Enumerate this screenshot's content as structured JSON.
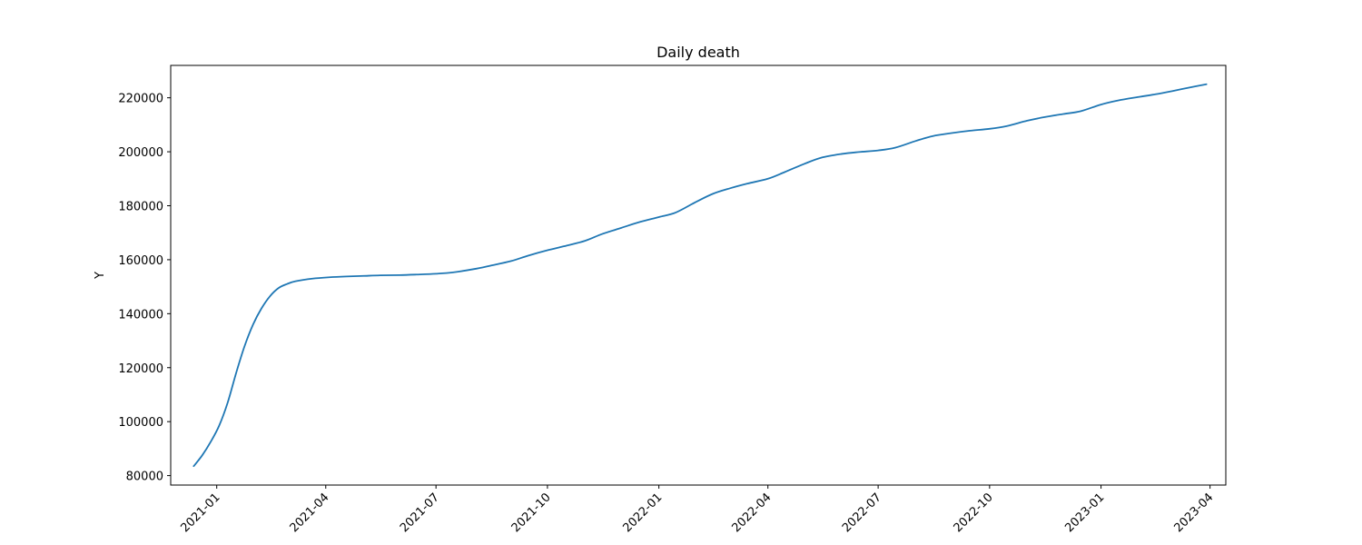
{
  "chart_data": {
    "type": "line",
    "title": "Daily death",
    "xlabel": "",
    "ylabel": "Y",
    "x_axis_type": "date",
    "xlim": [
      "2020-11-24",
      "2023-04-14"
    ],
    "ylim": [
      76500,
      232000
    ],
    "grid": false,
    "legend": "none",
    "line_color": "#1f77b4",
    "x_ticks": [
      "2021-01",
      "2021-04",
      "2021-07",
      "2021-10",
      "2022-01",
      "2022-04",
      "2022-07",
      "2022-10",
      "2023-01",
      "2023-04"
    ],
    "y_ticks": [
      80000,
      100000,
      120000,
      140000,
      160000,
      180000,
      200000,
      220000
    ],
    "series": [
      {
        "x": [
          "2020-12-13",
          "2020-12-20",
          "2020-12-27",
          "2021-01-03",
          "2021-01-10",
          "2021-01-17",
          "2021-01-24",
          "2021-01-31",
          "2021-02-07",
          "2021-02-14",
          "2021-02-21",
          "2021-02-28",
          "2021-03-07",
          "2021-03-21",
          "2021-04-04",
          "2021-04-18",
          "2021-05-02",
          "2021-05-16",
          "2021-06-01",
          "2021-06-15",
          "2021-07-01",
          "2021-07-15",
          "2021-08-01",
          "2021-08-15",
          "2021-09-01",
          "2021-09-15",
          "2021-10-01",
          "2021-10-15",
          "2021-11-01",
          "2021-11-15",
          "2021-12-01",
          "2021-12-15",
          "2022-01-01",
          "2022-01-15",
          "2022-02-01",
          "2022-02-15",
          "2022-03-01",
          "2022-03-15",
          "2022-04-01",
          "2022-04-15",
          "2022-05-01",
          "2022-05-15",
          "2022-06-01",
          "2022-06-15",
          "2022-07-01",
          "2022-07-15",
          "2022-08-01",
          "2022-08-15",
          "2022-09-01",
          "2022-09-15",
          "2022-10-01",
          "2022-10-15",
          "2022-11-01",
          "2022-11-15",
          "2022-12-01",
          "2022-12-15",
          "2023-01-01",
          "2023-01-15",
          "2023-02-01",
          "2023-02-15",
          "2023-03-01",
          "2023-03-15",
          "2023-03-29"
        ],
        "y": [
          83500,
          87500,
          92500,
          98500,
          107000,
          118000,
          128000,
          136000,
          142000,
          146500,
          149500,
          151000,
          152000,
          153000,
          153500,
          153800,
          154000,
          154200,
          154300,
          154500,
          154800,
          155300,
          156500,
          157800,
          159500,
          161500,
          163500,
          165000,
          167000,
          169500,
          171800,
          173800,
          175800,
          177500,
          181500,
          184500,
          186500,
          188200,
          190000,
          192500,
          195500,
          197800,
          199200,
          199900,
          200500,
          201500,
          204000,
          205800,
          207000,
          207800,
          208500,
          209500,
          211500,
          212800,
          214000,
          215000,
          217500,
          219000,
          220300,
          221300,
          222500,
          223800,
          225000
        ]
      }
    ]
  }
}
